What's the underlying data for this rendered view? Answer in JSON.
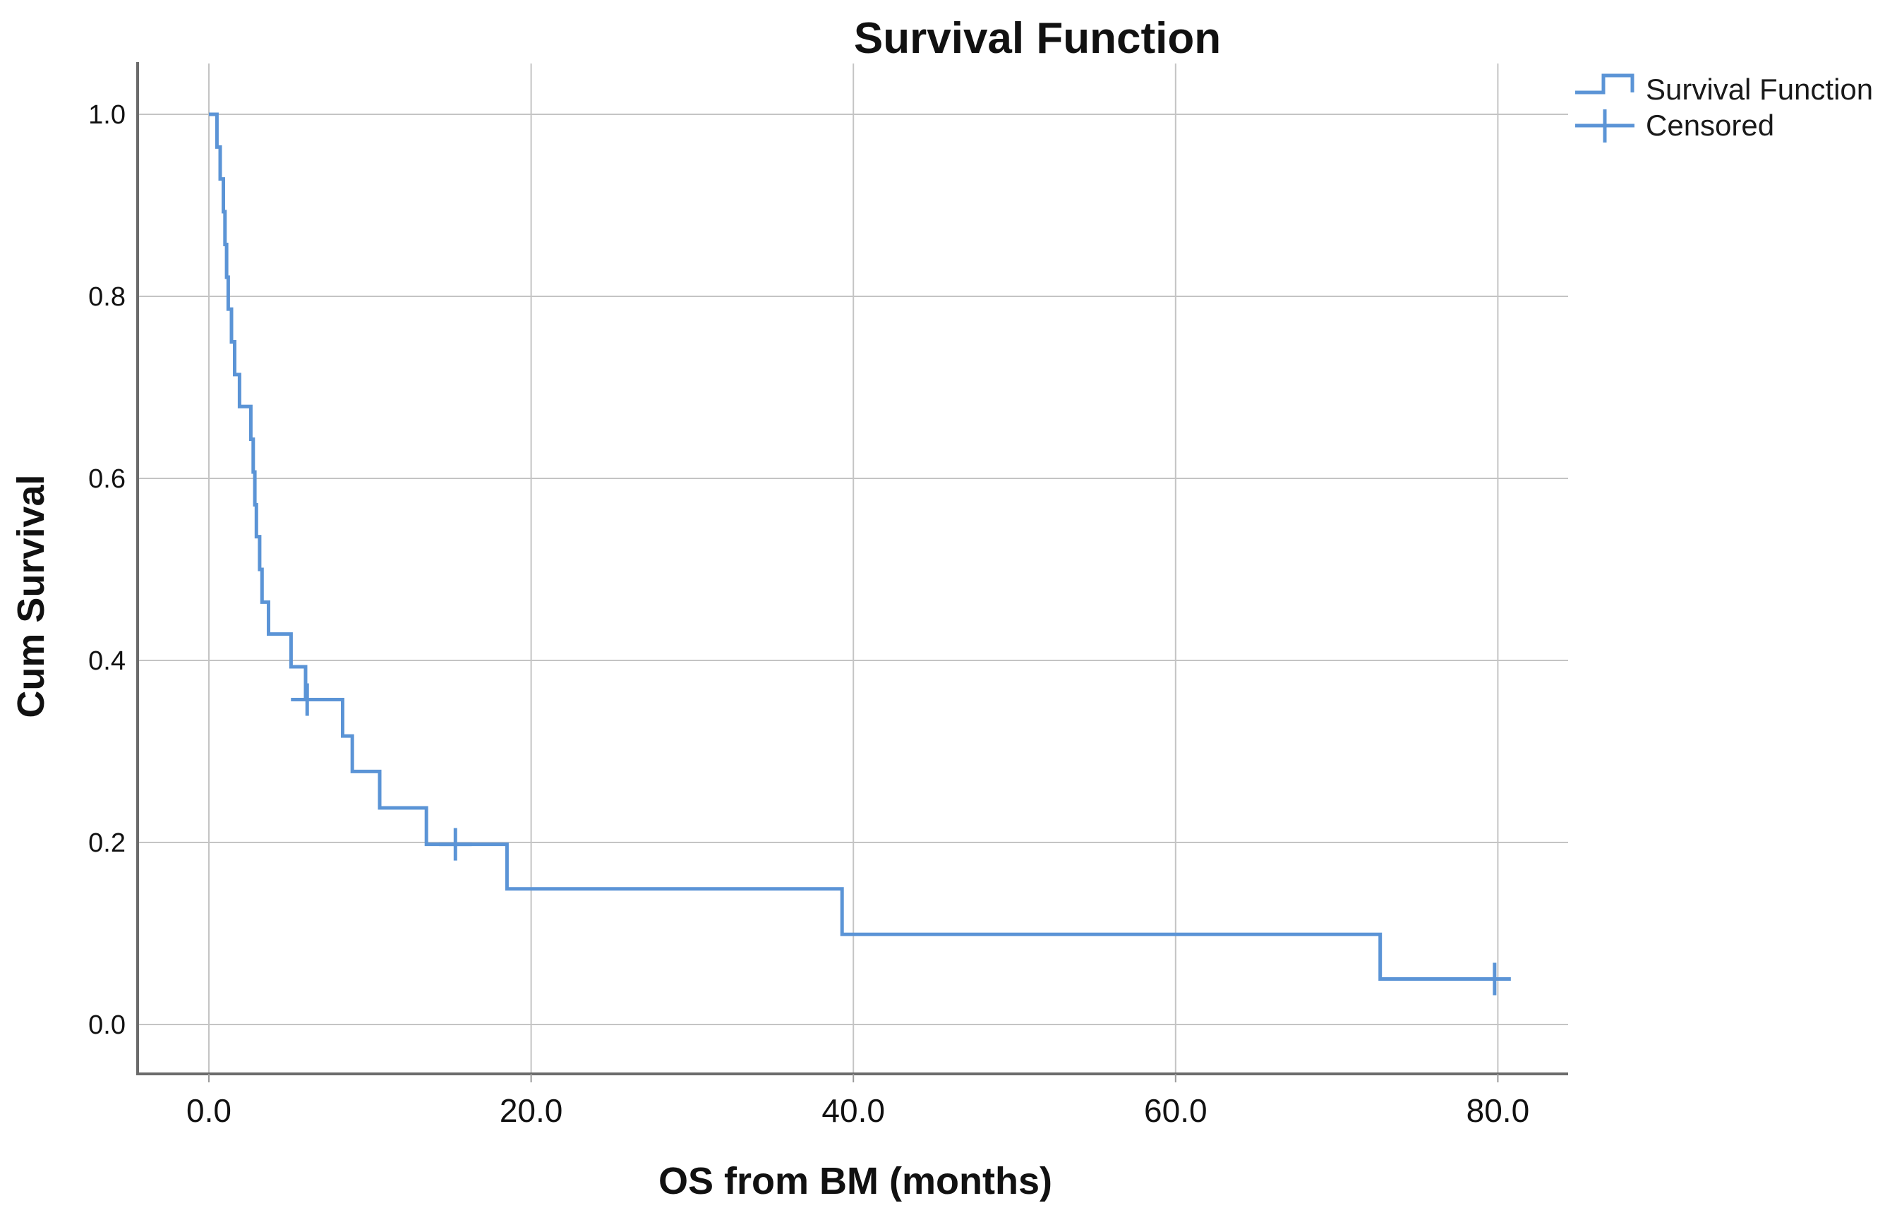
{
  "chart_data": {
    "type": "line",
    "subtype": "kaplan-meier-step",
    "title": "Survival Function",
    "xlabel": "OS from BM (months)",
    "ylabel": "Cum Survival",
    "grid": true,
    "xlim": [
      -4.4,
      84.4
    ],
    "ylim": [
      -0.054,
      1.057
    ],
    "x_ticks": {
      "values": [
        0,
        20,
        40,
        60,
        80
      ],
      "labels": [
        "0.0",
        "20.0",
        "40.0",
        "60.0",
        "80.0"
      ]
    },
    "y_ticks": {
      "values": [
        0,
        0.2,
        0.4,
        0.6,
        0.8,
        1.0
      ],
      "labels": [
        "0.0",
        "0.2",
        "0.4",
        "0.6",
        "0.8",
        "1.0"
      ]
    },
    "legend": {
      "position": "top-right",
      "entries": [
        {
          "label": "Survival Function",
          "marker": "step-line"
        },
        {
          "label": "Censored",
          "marker": "plus"
        }
      ]
    },
    "series": [
      {
        "name": "Survival Function",
        "start": {
          "t": 0,
          "s": 1.0
        },
        "steps": [
          {
            "t": 0.5,
            "s": 0.964
          },
          {
            "t": 0.7,
            "s": 0.929
          },
          {
            "t": 0.9,
            "s": 0.893
          },
          {
            "t": 1.0,
            "s": 0.857
          },
          {
            "t": 1.1,
            "s": 0.821
          },
          {
            "t": 1.2,
            "s": 0.786
          },
          {
            "t": 1.4,
            "s": 0.75
          },
          {
            "t": 1.6,
            "s": 0.714
          },
          {
            "t": 1.9,
            "s": 0.679
          },
          {
            "t": 2.6,
            "s": 0.643
          },
          {
            "t": 2.75,
            "s": 0.607
          },
          {
            "t": 2.85,
            "s": 0.571
          },
          {
            "t": 2.95,
            "s": 0.536
          },
          {
            "t": 3.15,
            "s": 0.5
          },
          {
            "t": 3.3,
            "s": 0.464
          },
          {
            "t": 3.7,
            "s": 0.429
          },
          {
            "t": 5.1,
            "s": 0.393
          },
          {
            "t": 6.0,
            "s": 0.357
          },
          {
            "t": 8.3,
            "s": 0.317
          },
          {
            "t": 8.9,
            "s": 0.278
          },
          {
            "t": 10.6,
            "s": 0.238
          },
          {
            "t": 13.5,
            "s": 0.198
          },
          {
            "t": 18.5,
            "s": 0.149
          },
          {
            "t": 39.3,
            "s": 0.099
          },
          {
            "t": 72.7,
            "s": 0.05
          }
        ],
        "end_t": 79.8
      }
    ],
    "censored_points": [
      {
        "t": 6.1,
        "s": 0.357
      },
      {
        "t": 15.3,
        "s": 0.198
      },
      {
        "t": 79.8,
        "s": 0.05
      }
    ],
    "colors": {
      "line": "#5b94d6",
      "grid": "#c4c4c4",
      "frame": "#6b6b6b",
      "tick": "#9a9a9a",
      "text": "#111111"
    }
  }
}
